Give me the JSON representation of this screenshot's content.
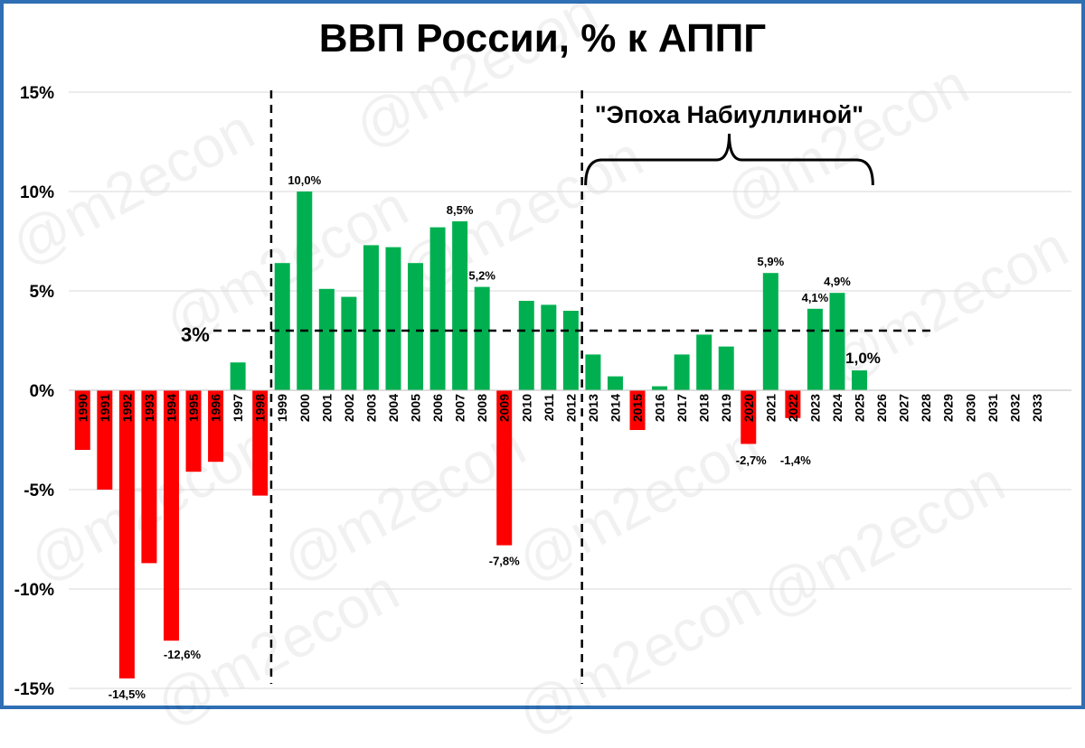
{
  "title": "ВВП России, % к АППГ",
  "watermark": "@m2econ",
  "colors": {
    "positive": "#00b050",
    "negative": "#ff0000",
    "frame": "#2f6fb4",
    "grid": "#d9d9d9"
  },
  "chart_data": {
    "type": "bar",
    "title": "ВВП России, % к АППГ",
    "xlabel": "",
    "ylabel": "",
    "ylim": [
      -15,
      15
    ],
    "yticks": [
      {
        "value": 15,
        "label": "15%"
      },
      {
        "value": 10,
        "label": "10%"
      },
      {
        "value": 5,
        "label": "5%"
      },
      {
        "value": 0,
        "label": "0%"
      },
      {
        "value": -5,
        "label": "-5%"
      },
      {
        "value": -10,
        "label": "-10%"
      },
      {
        "value": -15,
        "label": "-15%"
      }
    ],
    "grid": true,
    "legend": "none",
    "categories": [
      "1990",
      "1991",
      "1992",
      "1993",
      "1994",
      "1995",
      "1996",
      "1997",
      "1998",
      "1999",
      "2000",
      "2001",
      "2002",
      "2003",
      "2004",
      "2005",
      "2006",
      "2007",
      "2008",
      "2009",
      "2010",
      "2011",
      "2012",
      "2013",
      "2014",
      "2015",
      "2016",
      "2017",
      "2018",
      "2019",
      "2020",
      "2021",
      "2022",
      "2023",
      "2024",
      "2025",
      "2026",
      "2027",
      "2028",
      "2029",
      "2030",
      "2031",
      "2032",
      "2033"
    ],
    "values": [
      -3.0,
      -5.0,
      -14.5,
      -8.7,
      -12.6,
      -4.1,
      -3.6,
      1.4,
      -5.3,
      6.4,
      10.0,
      5.1,
      4.7,
      7.3,
      7.2,
      6.4,
      8.2,
      8.5,
      5.2,
      -7.8,
      4.5,
      4.3,
      4.0,
      1.8,
      0.7,
      -2.0,
      0.2,
      1.8,
      2.8,
      2.2,
      -2.7,
      5.9,
      -1.4,
      4.1,
      4.9,
      1.0,
      null,
      null,
      null,
      null,
      null,
      null,
      null,
      null
    ],
    "data_labels": [
      {
        "category": "1992",
        "label": "-14,5%"
      },
      {
        "category": "1994",
        "label": "-12,6%"
      },
      {
        "category": "2000",
        "label": "10,0%"
      },
      {
        "category": "2007",
        "label": "8,5%"
      },
      {
        "category": "2008",
        "label": "5,2%"
      },
      {
        "category": "2009",
        "label": "-7,8%"
      },
      {
        "category": "2020",
        "label": "-2,7%"
      },
      {
        "category": "2021",
        "label": "5,9%"
      },
      {
        "category": "2022",
        "label": "-1,4%"
      },
      {
        "category": "2023",
        "label": "4,1%"
      },
      {
        "category": "2024",
        "label": "4,9%"
      },
      {
        "category": "2025",
        "label": "1,0%"
      }
    ],
    "reference_line": {
      "value": 3,
      "label": "3%"
    },
    "vertical_dividers": [
      "1998/1999",
      "2012/2013"
    ],
    "annotation": {
      "text": "\"Эпоха Набиуллиной\"",
      "from": "2013",
      "to": "2026"
    }
  }
}
